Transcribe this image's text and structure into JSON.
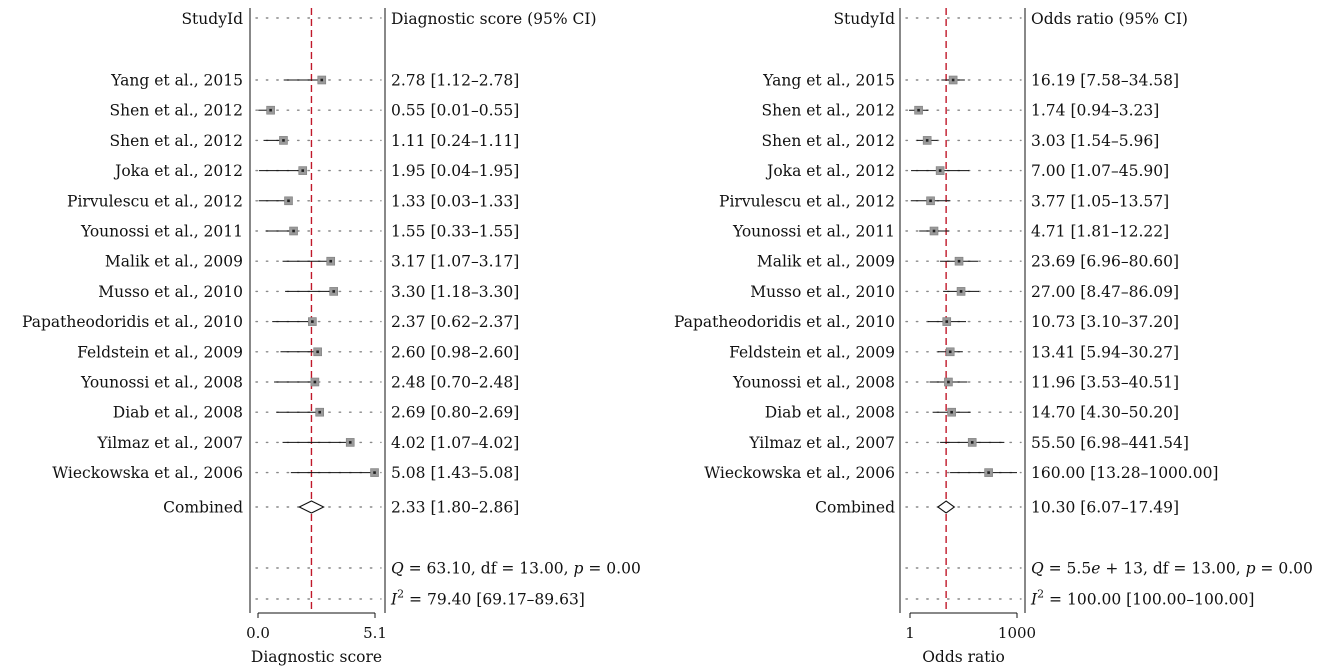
{
  "chart_data": [
    {
      "type": "forest",
      "header_label": "StudyId",
      "header_estimate": "Diagnostic score (95% CI)",
      "xlabel": "Diagnostic score",
      "xscale": "linear",
      "xlim": [
        0.0,
        5.1
      ],
      "xticks": [
        0.0,
        5.1
      ],
      "xtick_labels": [
        "0.0",
        "5.1"
      ],
      "reference_line": 2.33,
      "studies": [
        {
          "name": "Yang et al., 2015",
          "estimate": 2.78,
          "lower": 1.12,
          "upper": 2.78,
          "label": "2.78 [1.12–2.78]"
        },
        {
          "name": "Shen et al., 2012",
          "estimate": 0.55,
          "lower": 0.01,
          "upper": 0.55,
          "label": "0.55 [0.01–0.55]"
        },
        {
          "name": "Shen et al., 2012",
          "estimate": 1.11,
          "lower": 0.24,
          "upper": 1.11,
          "label": "1.11 [0.24–1.11]"
        },
        {
          "name": "Joka et al., 2012",
          "estimate": 1.95,
          "lower": 0.04,
          "upper": 1.95,
          "label": "1.95 [0.04–1.95]"
        },
        {
          "name": "Pirvulescu et al., 2012",
          "estimate": 1.33,
          "lower": 0.03,
          "upper": 1.33,
          "label": "1.33 [0.03–1.33]"
        },
        {
          "name": "Younossi et al., 2011",
          "estimate": 1.55,
          "lower": 0.33,
          "upper": 1.55,
          "label": "1.55 [0.33–1.55]"
        },
        {
          "name": "Malik et al., 2009",
          "estimate": 3.17,
          "lower": 1.07,
          "upper": 3.17,
          "label": "3.17 [1.07–3.17]"
        },
        {
          "name": "Musso et al., 2010",
          "estimate": 3.3,
          "lower": 1.18,
          "upper": 3.3,
          "label": "3.30 [1.18–3.30]"
        },
        {
          "name": "Papatheodoridis et al., 2010",
          "estimate": 2.37,
          "lower": 0.62,
          "upper": 2.37,
          "label": "2.37 [0.62–2.37]"
        },
        {
          "name": "Feldstein et al., 2009",
          "estimate": 2.6,
          "lower": 0.98,
          "upper": 2.6,
          "label": "2.60 [0.98–2.60]"
        },
        {
          "name": "Younossi et al., 2008",
          "estimate": 2.48,
          "lower": 0.7,
          "upper": 2.48,
          "label": "2.48 [0.70–2.48]"
        },
        {
          "name": "Diab et al., 2008",
          "estimate": 2.69,
          "lower": 0.8,
          "upper": 2.69,
          "label": "2.69 [0.80–2.69]"
        },
        {
          "name": "Yilmaz et al., 2007",
          "estimate": 4.02,
          "lower": 1.07,
          "upper": 4.02,
          "label": "4.02 [1.07–4.02]"
        },
        {
          "name": "Wieckowska et al., 2006",
          "estimate": 5.08,
          "lower": 1.43,
          "upper": 5.08,
          "label": "5.08 [1.43–5.08]"
        }
      ],
      "combined": {
        "name": "Combined",
        "estimate": 2.33,
        "lower": 1.8,
        "upper": 2.86,
        "label": "2.33 [1.80–2.86]"
      },
      "heterogeneity": {
        "q": "Q = 63.10, df = 13.00, p = 0.00",
        "i2": "I2 = 79.40 [69.17–89.63]"
      }
    },
    {
      "type": "forest",
      "header_label": "StudyId",
      "header_estimate": "Odds ratio (95% CI)",
      "xlabel": "Odds ratio",
      "xscale": "log",
      "xlim": [
        0.8,
        1000
      ],
      "xticks": [
        1,
        1000
      ],
      "xtick_labels": [
        "1",
        "1000"
      ],
      "reference_line": 10.3,
      "studies": [
        {
          "name": "Yang et al., 2015",
          "estimate": 16.19,
          "lower": 7.58,
          "upper": 34.58,
          "label": "16.19 [7.58–34.58]"
        },
        {
          "name": "Shen et al., 2012",
          "estimate": 1.74,
          "lower": 0.94,
          "upper": 3.23,
          "label": "1.74 [0.94–3.23]"
        },
        {
          "name": "Shen et al., 2012",
          "estimate": 3.03,
          "lower": 1.54,
          "upper": 5.96,
          "label": "3.03 [1.54–5.96]"
        },
        {
          "name": "Joka et al., 2012",
          "estimate": 7.0,
          "lower": 1.07,
          "upper": 45.9,
          "label": "7.00 [1.07–45.90]"
        },
        {
          "name": "Pirvulescu et al., 2012",
          "estimate": 3.77,
          "lower": 1.05,
          "upper": 13.57,
          "label": "3.77 [1.05–13.57]"
        },
        {
          "name": "Younossi et al., 2011",
          "estimate": 4.71,
          "lower": 1.81,
          "upper": 12.22,
          "label": "4.71 [1.81–12.22]"
        },
        {
          "name": "Malik et al., 2009",
          "estimate": 23.69,
          "lower": 6.96,
          "upper": 80.6,
          "label": "23.69 [6.96–80.60]"
        },
        {
          "name": "Musso et al., 2010",
          "estimate": 27.0,
          "lower": 8.47,
          "upper": 86.09,
          "label": "27.00 [8.47–86.09]"
        },
        {
          "name": "Papatheodoridis et al., 2010",
          "estimate": 10.73,
          "lower": 3.1,
          "upper": 37.2,
          "label": "10.73 [3.10–37.20]"
        },
        {
          "name": "Feldstein et al., 2009",
          "estimate": 13.41,
          "lower": 5.94,
          "upper": 30.27,
          "label": "13.41 [5.94–30.27]"
        },
        {
          "name": "Younossi et al., 2008",
          "estimate": 11.96,
          "lower": 3.53,
          "upper": 40.51,
          "label": "11.96 [3.53–40.51]"
        },
        {
          "name": "Diab et al., 2008",
          "estimate": 14.7,
          "lower": 4.3,
          "upper": 50.2,
          "label": "14.70 [4.30–50.20]"
        },
        {
          "name": "Yilmaz et al., 2007",
          "estimate": 55.5,
          "lower": 6.98,
          "upper": 441.54,
          "label": "55.50 [6.98–441.54]"
        },
        {
          "name": "Wieckowska et al., 2006",
          "estimate": 160.0,
          "lower": 13.28,
          "upper": 1000.0,
          "label": "160.00 [13.28–1000.00]"
        }
      ],
      "combined": {
        "name": "Combined",
        "estimate": 10.3,
        "lower": 6.07,
        "upper": 17.49,
        "label": "10.30 [6.07–17.49]"
      },
      "heterogeneity": {
        "q": "Q = 5.5e + 13, df = 13.00, p = 0.00",
        "i2": "I2 = 100.00 [100.00–100.00]"
      }
    }
  ],
  "colors": {
    "reference_line": "#c0182a",
    "marker_fill": "#9a9a9a",
    "marker_center": "#222222",
    "line": "#111111",
    "dots": "#888888"
  }
}
